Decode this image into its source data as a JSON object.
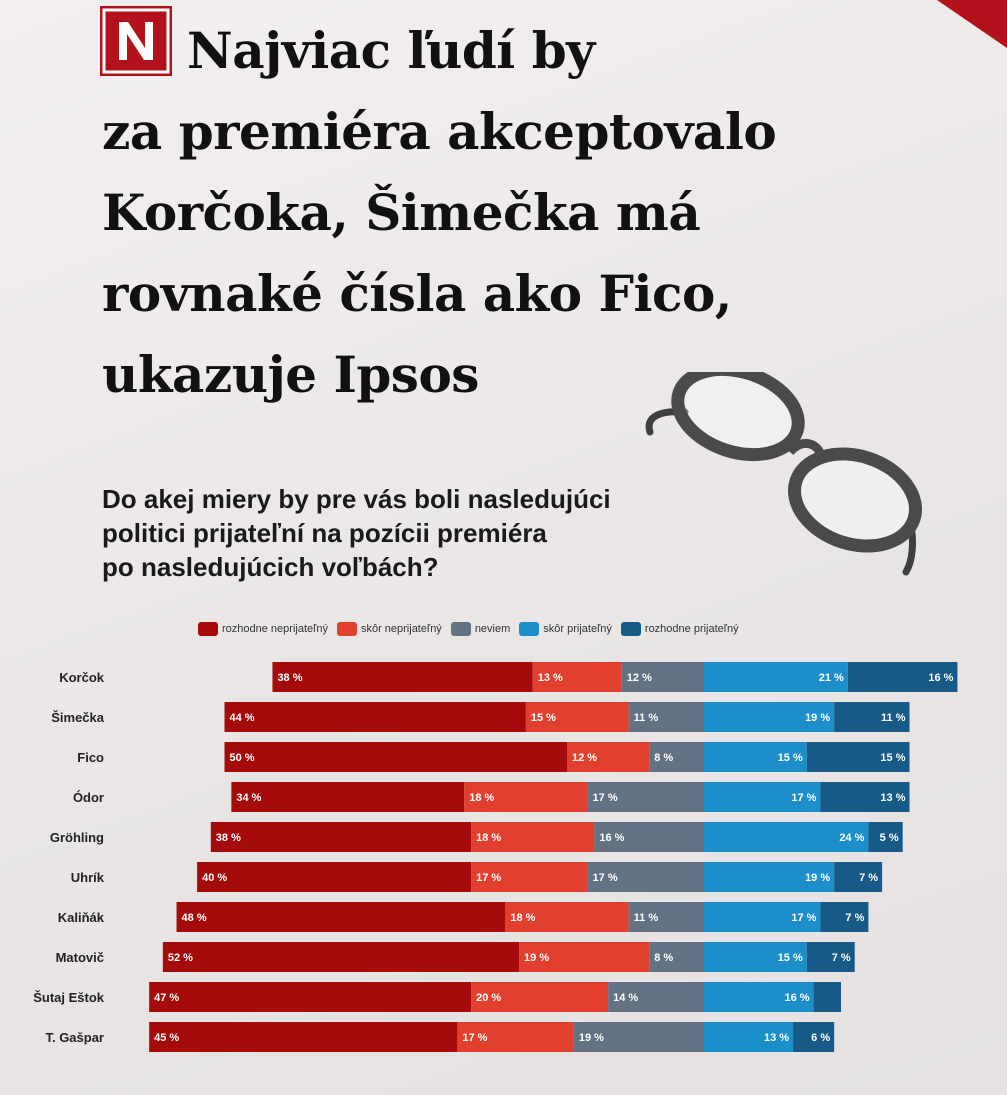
{
  "headline": {
    "line1": "Najviac ľudí by",
    "line2": "za premiéra akceptovalo",
    "line3": "Korčoka, Šimečka má",
    "line4": "rovnaké čísla ako Fico,",
    "line5": "ukazuje Ipsos"
  },
  "logo": {
    "icon": "n-logo-icon",
    "letter": "N"
  },
  "question": {
    "line1": "Do akej miery by pre vás boli nasledujúci",
    "line2": "politici prijateľní na pozícii premiéra",
    "line3": "po nasledujúcich voľbách?"
  },
  "colors": {
    "background": "#ece9e8",
    "brand": "#b3121c",
    "rozhodne_neprijatelny": "#a50b0b",
    "skor_neprijatelny": "#e0402d",
    "neviem": "#637282",
    "skor_prijatelny": "#1c8fca",
    "rozhodne_prijatelny": "#175987"
  },
  "chart_data": {
    "type": "bar",
    "orientation": "horizontal",
    "stacked": "diverging",
    "categories": [
      "Korčok",
      "Šimečka",
      "Fico",
      "Ódor",
      "Gröhling",
      "Uhrík",
      "Kaliňák",
      "Matovič",
      "Šutaj Eštok",
      "T. Gašpar"
    ],
    "series": [
      {
        "name": "rozhodne neprijateľný",
        "color": "#a50b0b",
        "values": [
          38,
          44,
          50,
          34,
          38,
          40,
          48,
          52,
          47,
          45
        ]
      },
      {
        "name": "skôr neprijateľný",
        "color": "#e0402d",
        "values": [
          13,
          15,
          12,
          18,
          18,
          17,
          18,
          19,
          20,
          17
        ]
      },
      {
        "name": "neviem",
        "color": "#637282",
        "values": [
          12,
          11,
          8,
          17,
          16,
          17,
          11,
          8,
          14,
          19
        ]
      },
      {
        "name": "skôr prijateľný",
        "color": "#1c8fca",
        "values": [
          21,
          19,
          15,
          17,
          24,
          19,
          17,
          15,
          16,
          13
        ]
      },
      {
        "name": "rozhodne prijateľný",
        "color": "#175987",
        "values": [
          16,
          11,
          15,
          13,
          5,
          7,
          7,
          7,
          4,
          6
        ]
      }
    ],
    "labels_shown": [
      [
        "38 %",
        "13 %",
        "12 %",
        "21 %",
        "16 %"
      ],
      [
        "44 %",
        "15 %",
        "11 %",
        "19 %",
        "11 %"
      ],
      [
        "50 %",
        "12 %",
        "8 %",
        "15 %",
        "15 %"
      ],
      [
        "34 %",
        "18 %",
        "17 %",
        "17 %",
        "13 %"
      ],
      [
        "38 %",
        "18 %",
        "16 %",
        "24 %",
        "5 %"
      ],
      [
        "40 %",
        "17 %",
        "17 %",
        "19 %",
        "7 %"
      ],
      [
        "48 %",
        "18 %",
        "11 %",
        "17 %",
        "7 %"
      ],
      [
        "52 %",
        "19 %",
        "8 %",
        "15 %",
        "7 %"
      ],
      [
        "47 %",
        "20 %",
        "14 %",
        "16 %",
        ""
      ],
      [
        "45 %",
        "17 %",
        "19 %",
        "13 %",
        "6 %"
      ]
    ],
    "legend_position": "top",
    "grid": false,
    "title": "",
    "xlabel": "",
    "ylabel": ""
  }
}
